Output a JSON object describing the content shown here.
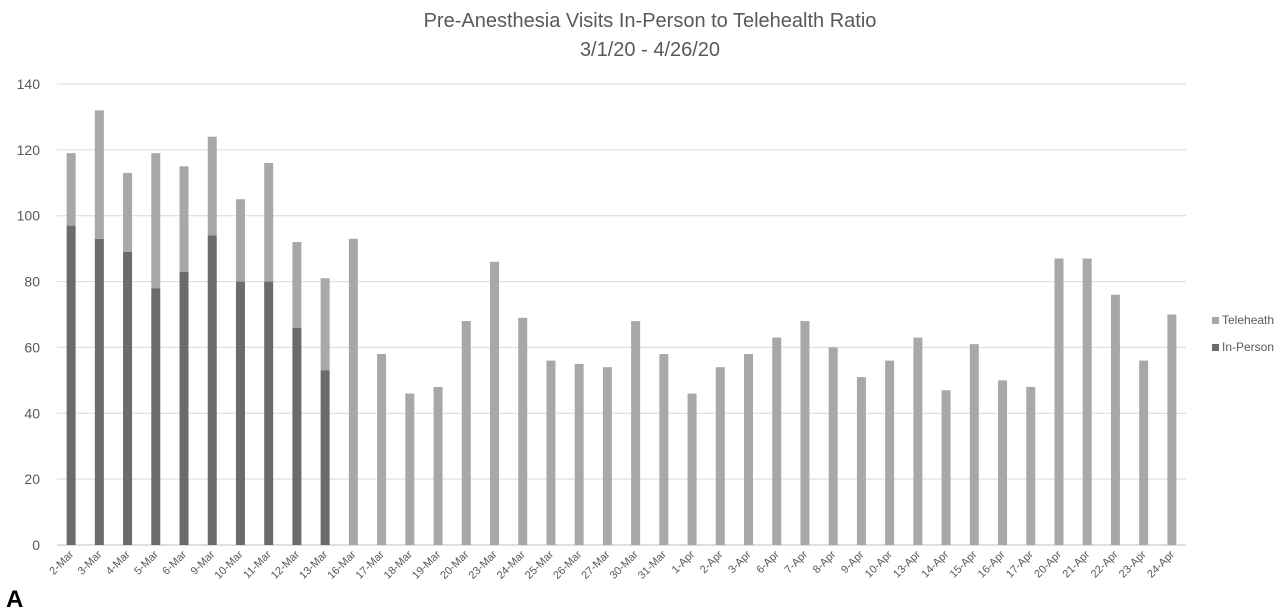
{
  "chart_data": {
    "type": "bar",
    "stacked": true,
    "title": "Pre-Anesthesia Visits In-Person to Telehealth Ratio",
    "subtitle": "3/1/20  - 4/26/20",
    "xlabel": "",
    "ylabel": "",
    "ylim": [
      0,
      140
    ],
    "yticks": [
      0,
      20,
      40,
      60,
      80,
      100,
      120,
      140
    ],
    "grid": true,
    "legend_position": "right",
    "categories": [
      "2-Mar",
      "3-Mar",
      "4-Mar",
      "5-Mar",
      "6-Mar",
      "9-Mar",
      "10-Mar",
      "11-Mar",
      "12-Mar",
      "13-Mar",
      "16-Mar",
      "17-Mar",
      "18-Mar",
      "19-Mar",
      "20-Mar",
      "23-Mar",
      "24-Mar",
      "25-Mar",
      "26-Mar",
      "27-Mar",
      "30-Mar",
      "31-Mar",
      "1-Apr",
      "2-Apr",
      "3-Apr",
      "6-Apr",
      "7-Apr",
      "8-Apr",
      "9-Apr",
      "10-Apr",
      "13-Apr",
      "14-Apr",
      "15-Apr",
      "16-Apr",
      "17-Apr",
      "20-Apr",
      "21-Apr",
      "22-Apr",
      "23-Apr",
      "24-Apr"
    ],
    "series": [
      {
        "name": "In-Person",
        "color": "#6b6b6b",
        "values": [
          97,
          93,
          89,
          78,
          83,
          94,
          80,
          80,
          66,
          53,
          0,
          0,
          0,
          0,
          0,
          0,
          0,
          0,
          0,
          0,
          0,
          0,
          0,
          0,
          0,
          0,
          0,
          0,
          0,
          0,
          0,
          0,
          0,
          0,
          0,
          0,
          0,
          0,
          0,
          0
        ]
      },
      {
        "name": "Teleheath",
        "color": "#a8a8a8",
        "values": [
          22,
          39,
          24,
          41,
          32,
          30,
          25,
          36,
          26,
          28,
          93,
          58,
          46,
          48,
          68,
          86,
          69,
          56,
          55,
          54,
          68,
          58,
          46,
          54,
          58,
          63,
          68,
          60,
          51,
          56,
          63,
          47,
          61,
          50,
          48,
          87,
          87,
          76,
          56,
          70
        ]
      }
    ],
    "legend_order": [
      "Teleheath",
      "In-Person"
    ]
  },
  "panel_label": "A",
  "colors": {
    "grid": "#d9d9d9",
    "axis": "#bfbfbf",
    "text": "#595959"
  }
}
